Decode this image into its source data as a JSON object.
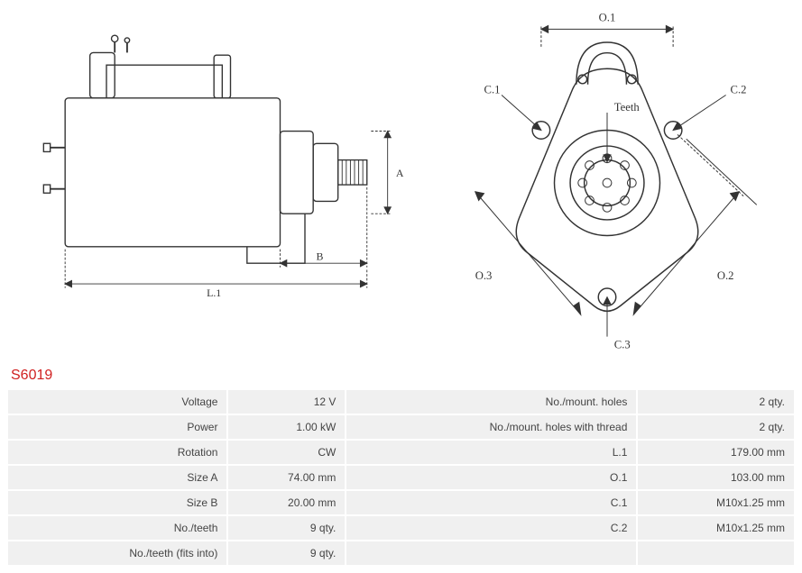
{
  "part_number": "S6019",
  "diagram_stroke": "#333333",
  "diagram_text_color": "#333333",
  "dimension_font_size": 12,
  "side_view": {
    "labels": {
      "A": "A",
      "B": "B",
      "L1": "L.1"
    }
  },
  "front_view": {
    "labels": {
      "O1": "O.1",
      "O2": "O.2",
      "O3": "O.3",
      "C1": "C.1",
      "C2": "C.2",
      "C3": "C.3",
      "Teeth": "Teeth"
    }
  },
  "specs_left": [
    {
      "label": "Voltage",
      "value": "12 V"
    },
    {
      "label": "Power",
      "value": "1.00 kW"
    },
    {
      "label": "Rotation",
      "value": "CW"
    },
    {
      "label": "Size A",
      "value": "74.00 mm"
    },
    {
      "label": "Size B",
      "value": "20.00 mm"
    },
    {
      "label": "No./teeth",
      "value": "9 qty."
    },
    {
      "label": "No./teeth (fits into)",
      "value": "9 qty."
    }
  ],
  "specs_right": [
    {
      "label": "No./mount. holes",
      "value": "2 qty."
    },
    {
      "label": "No./mount. holes with thread",
      "value": "2 qty."
    },
    {
      "label": "L.1",
      "value": "179.00 mm"
    },
    {
      "label": "O.1",
      "value": "103.00 mm"
    },
    {
      "label": "C.1",
      "value": "M10x1.25 mm"
    },
    {
      "label": "C.2",
      "value": "M10x1.25 mm"
    },
    {
      "label": "",
      "value": ""
    }
  ]
}
